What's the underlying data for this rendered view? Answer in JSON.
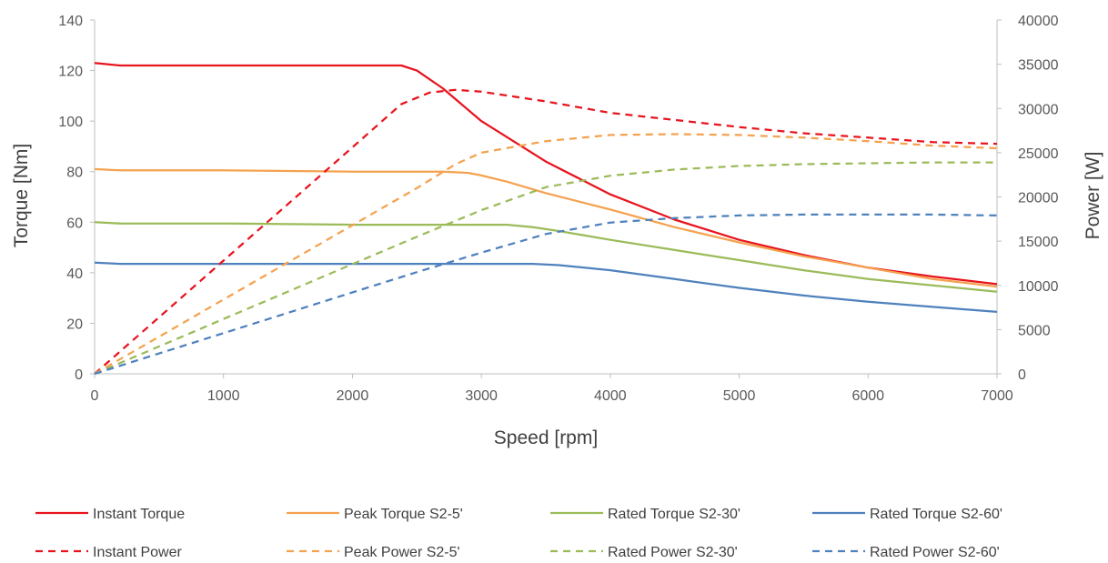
{
  "chart_data": {
    "type": "line",
    "xlabel": "Speed [rpm]",
    "ylabel_left": "Torque [Nm]",
    "ylabel_right": "Power [W]",
    "xlim": [
      0,
      7000
    ],
    "ylim_left": [
      0,
      140
    ],
    "ylim_right": [
      0,
      40000
    ],
    "xticks": [
      0,
      1000,
      2000,
      3000,
      4000,
      5000,
      6000,
      7000
    ],
    "yticks_left": [
      0,
      20,
      40,
      60,
      80,
      100,
      120,
      140
    ],
    "yticks_right": [
      0,
      5000,
      10000,
      15000,
      20000,
      25000,
      30000,
      35000,
      40000
    ],
    "grid": false,
    "legend_position": "bottom",
    "series": [
      {
        "name": "Instant Torque",
        "axis": "left",
        "color": "#e8141e",
        "dash": "solid",
        "x": [
          0,
          200,
          1000,
          2000,
          2250,
          2380,
          2500,
          2700,
          3000,
          3500,
          4000,
          4500,
          5000,
          5500,
          6000,
          6500,
          7000
        ],
        "y": [
          123,
          122,
          122,
          122,
          122,
          122,
          120,
          113,
          100,
          84,
          71,
          61,
          53,
          47,
          42,
          38.5,
          35.5
        ]
      },
      {
        "name": "Peak Torque S2-5'",
        "axis": "left",
        "color": "#f4a24f",
        "dash": "solid",
        "x": [
          0,
          200,
          1000,
          2000,
          2700,
          2900,
          3000,
          3200,
          3500,
          4000,
          4500,
          5000,
          5500,
          6000,
          6500,
          7000
        ],
        "y": [
          81,
          80.5,
          80.5,
          80,
          80,
          79.5,
          78.5,
          76,
          71.5,
          65,
          58,
          52,
          46.5,
          42,
          37.5,
          34.5
        ]
      },
      {
        "name": "Rated Torque S2-30'",
        "axis": "left",
        "color": "#9bbb59",
        "dash": "solid",
        "x": [
          0,
          200,
          1000,
          2000,
          3000,
          3200,
          3400,
          3600,
          4000,
          4500,
          5000,
          5500,
          6000,
          6500,
          7000
        ],
        "y": [
          60,
          59.5,
          59.5,
          59,
          59,
          59,
          58,
          56.5,
          53,
          49,
          45,
          41,
          37.5,
          35,
          32.5
        ]
      },
      {
        "name": "Rated Torque S2-60'",
        "axis": "left",
        "color": "#4f81bd",
        "dash": "solid",
        "x": [
          0,
          200,
          1000,
          2000,
          3000,
          3400,
          3600,
          4000,
          4500,
          5000,
          5500,
          6000,
          6500,
          7000
        ],
        "y": [
          44,
          43.5,
          43.5,
          43.5,
          43.5,
          43.5,
          43,
          41,
          37.5,
          34,
          31,
          28.5,
          26.5,
          24.5
        ]
      },
      {
        "name": "Instant Power",
        "axis": "right",
        "color": "#e8141e",
        "dash": "dashed",
        "x": [
          0,
          500,
          1000,
          1500,
          2000,
          2380,
          2600,
          2800,
          3000,
          3500,
          4000,
          4500,
          5000,
          5500,
          6000,
          6500,
          7000
        ],
        "y": [
          0,
          6400,
          12800,
          19200,
          25600,
          30500,
          31800,
          32100,
          31900,
          30800,
          29500,
          28700,
          27900,
          27200,
          26700,
          26200,
          26000
        ]
      },
      {
        "name": "Peak Power S2-5'",
        "axis": "right",
        "color": "#f4a24f",
        "dash": "dashed",
        "x": [
          0,
          500,
          1000,
          1500,
          2000,
          2500,
          2800,
          3000,
          3500,
          4000,
          4500,
          5000,
          5500,
          6000,
          6500,
          7000
        ],
        "y": [
          0,
          4200,
          8400,
          12600,
          16800,
          21000,
          23700,
          25000,
          26300,
          27000,
          27100,
          27000,
          26700,
          26300,
          25800,
          25500
        ]
      },
      {
        "name": "Rated Power S2-30'",
        "axis": "right",
        "color": "#9bbb59",
        "dash": "dashed",
        "x": [
          0,
          500,
          1000,
          1500,
          2000,
          2500,
          3000,
          3500,
          4000,
          4500,
          5000,
          5500,
          6000,
          6500,
          7000
        ],
        "y": [
          0,
          3100,
          6200,
          9300,
          12400,
          15500,
          18500,
          21100,
          22400,
          23100,
          23500,
          23700,
          23800,
          23900,
          23900
        ]
      },
      {
        "name": "Rated Power S2-60'",
        "axis": "right",
        "color": "#4f81bd",
        "dash": "dashed",
        "x": [
          0,
          500,
          1000,
          1500,
          2000,
          2500,
          3000,
          3500,
          4000,
          4500,
          5000,
          5500,
          6000,
          6500,
          7000
        ],
        "y": [
          0,
          2300,
          4600,
          6900,
          9200,
          11500,
          13700,
          15800,
          17100,
          17600,
          17900,
          18000,
          18000,
          18000,
          17900
        ]
      }
    ]
  }
}
